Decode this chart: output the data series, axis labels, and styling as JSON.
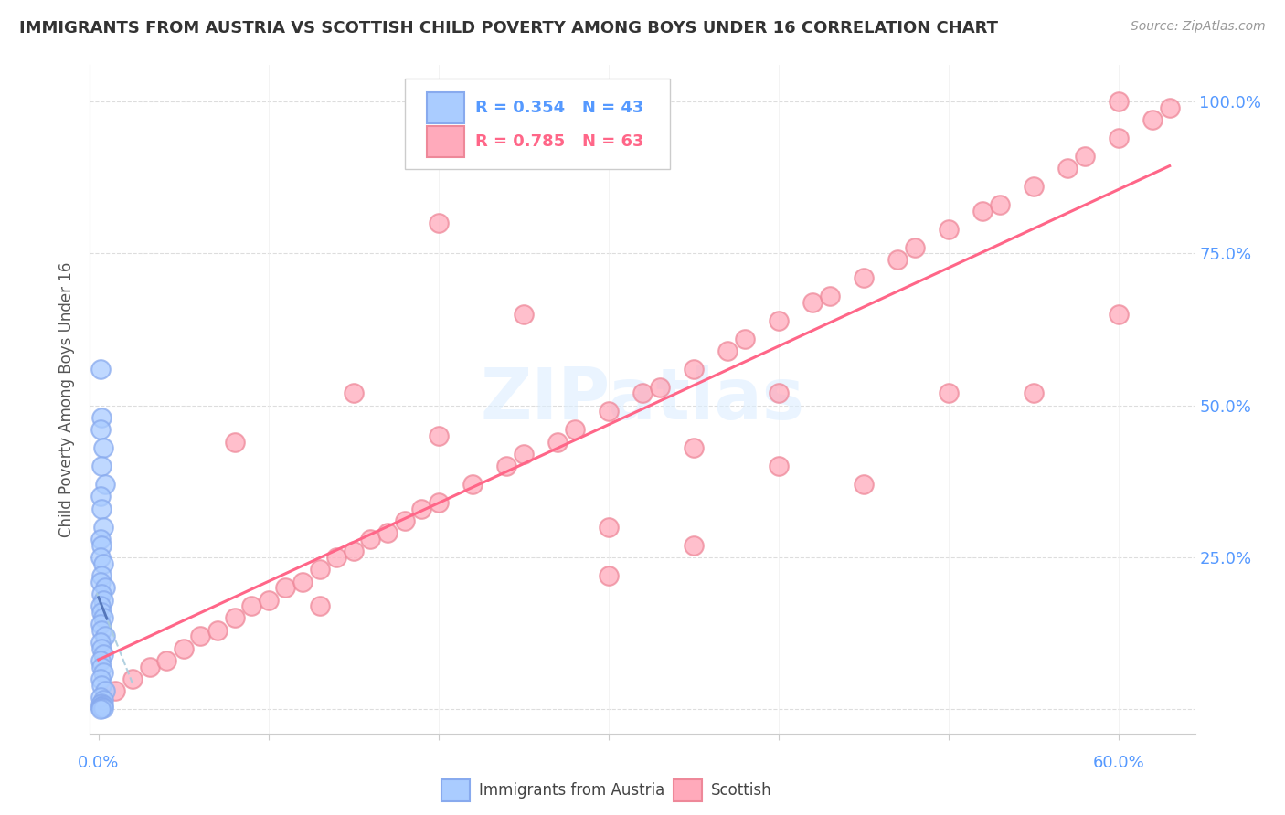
{
  "title": "IMMIGRANTS FROM AUSTRIA VS SCOTTISH CHILD POVERTY AMONG BOYS UNDER 16 CORRELATION CHART",
  "source": "Source: ZipAtlas.com",
  "ylabel": "Child Poverty Among Boys Under 16",
  "legend1_label": "Immigrants from Austria",
  "legend2_label": "Scottish",
  "r1": 0.354,
  "n1": 43,
  "r2": 0.785,
  "n2": 63,
  "color_blue_fill": "#aaccff",
  "color_blue_edge": "#88aaee",
  "color_pink_fill": "#ffaabb",
  "color_pink_edge": "#ee8899",
  "color_line_blue_dash": "#aaccdd",
  "color_line_blue_solid": "#5577bb",
  "color_line_pink": "#ff6688",
  "color_grid": "#dddddd",
  "color_axis_label": "#5599ff",
  "color_title": "#333333",
  "color_source": "#999999",
  "color_watermark": "#ddeeff",
  "color_ylabel": "#555555",
  "watermark_text": "ZIPatlas",
  "austria_x": [
    0.001,
    0.002,
    0.001,
    0.003,
    0.002,
    0.004,
    0.001,
    0.002,
    0.003,
    0.001,
    0.002,
    0.001,
    0.003,
    0.002,
    0.001,
    0.004,
    0.002,
    0.003,
    0.001,
    0.002,
    0.003,
    0.001,
    0.002,
    0.004,
    0.001,
    0.002,
    0.003,
    0.001,
    0.002,
    0.003,
    0.001,
    0.002,
    0.004,
    0.001,
    0.003,
    0.002,
    0.001,
    0.003,
    0.002,
    0.001,
    0.002,
    0.003,
    0.001
  ],
  "austria_y": [
    0.56,
    0.48,
    0.46,
    0.43,
    0.4,
    0.37,
    0.35,
    0.33,
    0.3,
    0.28,
    0.27,
    0.25,
    0.24,
    0.22,
    0.21,
    0.2,
    0.19,
    0.18,
    0.17,
    0.16,
    0.15,
    0.14,
    0.13,
    0.12,
    0.11,
    0.1,
    0.09,
    0.08,
    0.07,
    0.06,
    0.05,
    0.04,
    0.03,
    0.02,
    0.015,
    0.01,
    0.008,
    0.006,
    0.005,
    0.004,
    0.003,
    0.002,
    0.001
  ],
  "scottish_x": [
    0.01,
    0.02,
    0.03,
    0.04,
    0.05,
    0.06,
    0.07,
    0.08,
    0.09,
    0.1,
    0.11,
    0.12,
    0.13,
    0.14,
    0.15,
    0.16,
    0.17,
    0.18,
    0.19,
    0.2,
    0.22,
    0.24,
    0.25,
    0.27,
    0.28,
    0.3,
    0.32,
    0.33,
    0.35,
    0.37,
    0.38,
    0.4,
    0.42,
    0.43,
    0.45,
    0.47,
    0.48,
    0.5,
    0.52,
    0.53,
    0.55,
    0.57,
    0.58,
    0.6,
    0.62,
    0.63,
    0.15,
    0.2,
    0.25,
    0.3,
    0.35,
    0.4,
    0.2,
    0.3,
    0.4,
    0.5,
    0.55,
    0.6,
    0.08,
    0.13,
    0.35,
    0.45,
    0.6
  ],
  "scottish_y": [
    0.03,
    0.05,
    0.07,
    0.08,
    0.1,
    0.12,
    0.13,
    0.15,
    0.17,
    0.18,
    0.2,
    0.21,
    0.23,
    0.25,
    0.26,
    0.28,
    0.29,
    0.31,
    0.33,
    0.34,
    0.37,
    0.4,
    0.42,
    0.44,
    0.46,
    0.49,
    0.52,
    0.53,
    0.56,
    0.59,
    0.61,
    0.64,
    0.67,
    0.68,
    0.71,
    0.74,
    0.76,
    0.79,
    0.82,
    0.83,
    0.86,
    0.89,
    0.91,
    0.94,
    0.97,
    0.99,
    0.52,
    0.45,
    0.65,
    0.3,
    0.43,
    0.52,
    0.8,
    0.22,
    0.4,
    0.52,
    0.52,
    1.0,
    0.44,
    0.17,
    0.27,
    0.37,
    0.65
  ],
  "xlim": [
    -0.003,
    0.065
  ],
  "ylim": [
    -0.02,
    1.06
  ],
  "ytick_positions": [
    0.0,
    0.25,
    0.5,
    0.75,
    1.0
  ],
  "ytick_labels_right": [
    "",
    "25.0%",
    "50.0%",
    "75.0%",
    "100.0%"
  ],
  "xtick_label_left": "0.0%",
  "xtick_label_right": "60.0%"
}
